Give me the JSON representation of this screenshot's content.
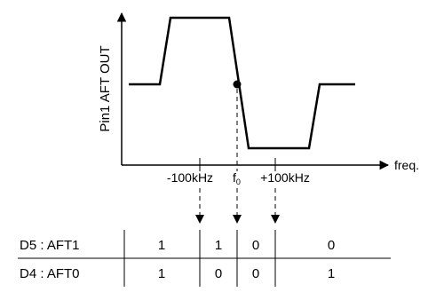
{
  "diagram": {
    "y_axis_label": "Pin1 AFT OUT",
    "x_axis_label": "freq.",
    "tick_labels": {
      "minus": "-100kHz",
      "f0_main": "f",
      "f0_sub": "0",
      "plus": "+100kHz"
    }
  },
  "table": {
    "rows": [
      {
        "label": "D5 : AFT1",
        "values": [
          "1",
          "1",
          "0",
          "0"
        ]
      },
      {
        "label": "D4 : AFT0",
        "values": [
          "1",
          "0",
          "0",
          "1"
        ]
      }
    ]
  }
}
